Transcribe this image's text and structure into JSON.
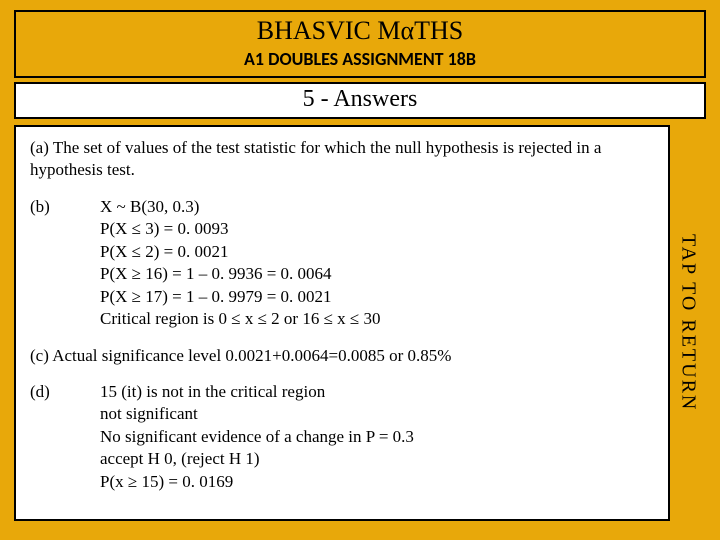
{
  "colors": {
    "slide_bg": "#e8a80a",
    "panel_bg": "#ffffff",
    "border": "#000000",
    "text": "#000000"
  },
  "typography": {
    "title_family": "Times New Roman",
    "title_size_pt": 20,
    "subtitle_family": "Calibri",
    "subtitle_size_pt": 14,
    "section_size_pt": 18,
    "body_family": "Times New Roman",
    "body_size_pt": 13
  },
  "header": {
    "title": "BHASVIC MαTHS",
    "subtitle": "A1 DOUBLES ASSIGNMENT 18B"
  },
  "section": {
    "title": "5 - Answers"
  },
  "answers": {
    "a": {
      "label": "(a)",
      "text": "The set of values of the test statistic for which the null hypothesis is rejected in a hypothesis test."
    },
    "b": {
      "label": "(b)",
      "lines": [
        "X ~ B(30, 0.3)",
        "P(X ≤ 3) = 0. 0093",
        "P(X ≤ 2) = 0. 0021",
        "P(X ≥ 16) = 1 – 0. 9936 = 0. 0064",
        "P(X ≥ 17) = 1 – 0. 9979 = 0. 0021",
        "Critical region is 0 ≤ x ≤ 2 or 16 ≤ x ≤ 30"
      ]
    },
    "c": {
      "label": "(c)",
      "text": "Actual significance level 0.0021+0.0064=0.0085 or 0.85%"
    },
    "d": {
      "label": "(d)",
      "lines": [
        "15 (it) is not in the critical region",
        "not significant",
        "No significant evidence of a change in P = 0.3",
        "accept H 0, (reject H 1)",
        "P(x ≥ 15) = 0. 0169"
      ]
    }
  },
  "side": {
    "tap_label": "TAP TO RETURN"
  }
}
